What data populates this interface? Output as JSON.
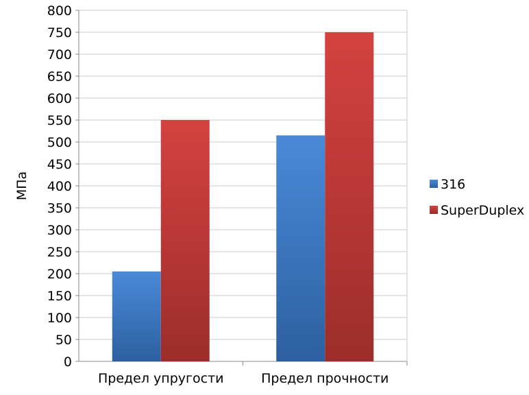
{
  "chart_data": {
    "type": "bar",
    "title": "",
    "xlabel": "",
    "ylabel": "МПа",
    "ylim": [
      0,
      800
    ],
    "ytick_step": 50,
    "grid": true,
    "legend_position": "right",
    "categories": [
      "Предел упругости",
      "Предел прочности"
    ],
    "series": [
      {
        "name": "316",
        "values": [
          205,
          515
        ],
        "color": "#3f7fd0"
      },
      {
        "name": "SuperDuplex",
        "values": [
          550,
          750
        ],
        "color": "#cc3a38"
      }
    ]
  }
}
